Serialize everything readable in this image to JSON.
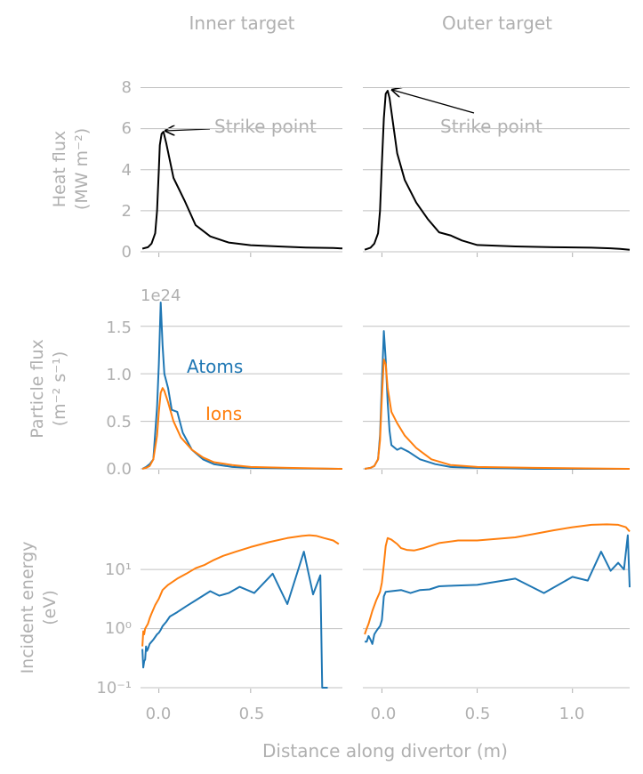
{
  "colors": {
    "atoms": "#1f77b4",
    "ions": "#ff7f0e",
    "heat": "#000000",
    "text": "#b0b0b0",
    "grid": "#c0c0c0"
  },
  "figure": {
    "col_titles": [
      "Inner target",
      "Outer target"
    ],
    "xlabel": "Distance along divertor (m)",
    "xticks_inner": [
      "0.0",
      "0.5"
    ],
    "xticks_outer": [
      "0.0",
      "0.5",
      "1.0"
    ],
    "ylabel_heat": [
      "Heat flux",
      "(MW m⁻²)"
    ],
    "ylabel_particle": [
      "Particle flux",
      "(m⁻² s⁻¹)"
    ],
    "ylabel_energy": [
      "Incident energy",
      "(eV)"
    ],
    "yticks_heat": [
      "0",
      "2",
      "4",
      "6",
      "8"
    ],
    "yticks_particle": [
      "0.0",
      "0.5",
      "1.0",
      "1.5"
    ],
    "yticks_energy": [
      "10⁻¹",
      "10⁰",
      "10¹"
    ],
    "offset_label": "1e24",
    "annotation_strike_inner": "Strike point",
    "annotation_strike_outer": "Strike point",
    "legend_atoms": "Atoms",
    "legend_ions": "Ions"
  },
  "chart_data": [
    {
      "type": "line",
      "panel": "heat-inner",
      "title": "Inner target",
      "ylabel": "Heat flux (MW m-2)",
      "xlim": [
        -0.1,
        1.0
      ],
      "ylim": [
        0,
        8.5
      ],
      "series": [
        {
          "name": "Heat flux",
          "color": "#000000",
          "x": [
            -0.09,
            -0.06,
            -0.04,
            -0.02,
            -0.01,
            0.0,
            0.005,
            0.015,
            0.025,
            0.04,
            0.08,
            0.14,
            0.2,
            0.28,
            0.38,
            0.5,
            0.65,
            0.8,
            0.95,
            1.0
          ],
          "y": [
            0.15,
            0.22,
            0.4,
            0.9,
            2.0,
            4.0,
            5.2,
            5.75,
            5.85,
            5.3,
            3.6,
            2.5,
            1.3,
            0.75,
            0.45,
            0.32,
            0.26,
            0.21,
            0.18,
            0.16
          ]
        }
      ],
      "annotation": {
        "text": "Strike point",
        "xy": [
          0.02,
          5.85
        ]
      }
    },
    {
      "type": "line",
      "panel": "heat-outer",
      "title": "Outer target",
      "xlim": [
        -0.1,
        1.3
      ],
      "ylim": [
        0,
        8.5
      ],
      "series": [
        {
          "name": "Heat flux",
          "color": "#000000",
          "x": [
            -0.09,
            -0.06,
            -0.04,
            -0.02,
            -0.01,
            0.0,
            0.01,
            0.02,
            0.03,
            0.04,
            0.08,
            0.12,
            0.18,
            0.24,
            0.3,
            0.36,
            0.42,
            0.5,
            0.7,
            0.9,
            1.1,
            1.2,
            1.25,
            1.3
          ],
          "y": [
            0.1,
            0.2,
            0.4,
            0.9,
            2.0,
            4.3,
            6.5,
            7.7,
            7.85,
            7.5,
            4.8,
            3.5,
            2.4,
            1.6,
            0.95,
            0.8,
            0.55,
            0.33,
            0.26,
            0.22,
            0.2,
            0.17,
            0.14,
            0.1
          ]
        }
      ],
      "annotation": {
        "text": "Strike point",
        "xy": [
          0.03,
          7.85
        ]
      }
    },
    {
      "type": "line",
      "panel": "particle-inner",
      "ylabel": "Particle flux (m-2 s-1)",
      "scale": "1e24",
      "xlim": [
        -0.1,
        1.0
      ],
      "ylim": [
        0,
        1.75
      ],
      "series": [
        {
          "name": "Atoms",
          "color": "#1f77b4",
          "x": [
            -0.09,
            -0.07,
            -0.05,
            -0.03,
            -0.01,
            0.0,
            0.01,
            0.02,
            0.03,
            0.05,
            0.07,
            0.1,
            0.13,
            0.18,
            0.24,
            0.3,
            0.4,
            0.5,
            0.7,
            1.0
          ],
          "y": [
            0.0,
            0.02,
            0.05,
            0.1,
            0.65,
            1.1,
            1.75,
            1.3,
            1.0,
            0.85,
            0.62,
            0.6,
            0.38,
            0.2,
            0.1,
            0.05,
            0.02,
            0.01,
            0.005,
            0.0
          ]
        },
        {
          "name": "Ions",
          "color": "#ff7f0e",
          "x": [
            -0.09,
            -0.07,
            -0.05,
            -0.03,
            -0.01,
            0.0,
            0.01,
            0.02,
            0.03,
            0.05,
            0.08,
            0.12,
            0.18,
            0.24,
            0.3,
            0.4,
            0.5,
            0.7,
            1.0
          ],
          "y": [
            0.0,
            0.01,
            0.03,
            0.1,
            0.35,
            0.6,
            0.8,
            0.85,
            0.82,
            0.7,
            0.5,
            0.33,
            0.2,
            0.12,
            0.07,
            0.04,
            0.02,
            0.01,
            0.0
          ]
        }
      ]
    },
    {
      "type": "line",
      "panel": "particle-outer",
      "scale": "1e24",
      "xlim": [
        -0.1,
        1.3
      ],
      "ylim": [
        0,
        1.75
      ],
      "series": [
        {
          "name": "Atoms",
          "color": "#1f77b4",
          "x": [
            -0.09,
            -0.06,
            -0.04,
            -0.02,
            -0.01,
            0.0,
            0.01,
            0.02,
            0.03,
            0.04,
            0.05,
            0.08,
            0.1,
            0.14,
            0.2,
            0.28,
            0.36,
            0.5,
            0.8,
            1.3
          ],
          "y": [
            0.0,
            0.01,
            0.03,
            0.1,
            0.35,
            0.9,
            1.45,
            1.15,
            0.7,
            0.4,
            0.25,
            0.2,
            0.22,
            0.18,
            0.1,
            0.05,
            0.02,
            0.01,
            0.0,
            0.0
          ]
        },
        {
          "name": "Ions",
          "color": "#ff7f0e",
          "x": [
            -0.09,
            -0.06,
            -0.04,
            -0.02,
            -0.01,
            0.0,
            0.01,
            0.02,
            0.03,
            0.05,
            0.08,
            0.12,
            0.18,
            0.26,
            0.36,
            0.5,
            0.8,
            1.3
          ],
          "y": [
            0.0,
            0.01,
            0.03,
            0.1,
            0.3,
            0.75,
            1.15,
            1.1,
            0.85,
            0.6,
            0.48,
            0.35,
            0.22,
            0.1,
            0.04,
            0.02,
            0.01,
            0.0
          ]
        }
      ]
    },
    {
      "type": "line",
      "panel": "energy-inner",
      "ylabel": "Incident energy (eV)",
      "yscale": "log",
      "xlim": [
        -0.1,
        1.0
      ],
      "ylim": [
        0.1,
        70
      ],
      "series": [
        {
          "name": "Atoms",
          "color": "#1f77b4",
          "x": [
            -0.09,
            -0.085,
            -0.08,
            -0.075,
            -0.07,
            -0.065,
            -0.06,
            -0.05,
            -0.04,
            -0.03,
            -0.02,
            -0.01,
            0.0,
            0.01,
            0.02,
            0.04,
            0.06,
            0.1,
            0.15,
            0.2,
            0.28,
            0.33,
            0.38,
            0.44,
            0.52,
            0.62,
            0.7,
            0.79,
            0.84,
            0.88,
            0.89,
            0.92
          ],
          "y": [
            0.45,
            0.22,
            0.28,
            0.3,
            0.5,
            0.42,
            0.45,
            0.55,
            0.6,
            0.65,
            0.72,
            0.8,
            0.85,
            0.95,
            1.1,
            1.3,
            1.6,
            1.9,
            2.4,
            3.0,
            4.3,
            3.6,
            4.0,
            5.1,
            4.0,
            8.5,
            2.6,
            20.0,
            3.8,
            8.0,
            0.1,
            0.1
          ]
        },
        {
          "name": "Ions",
          "color": "#ff7f0e",
          "x": [
            -0.09,
            -0.085,
            -0.08,
            -0.075,
            -0.06,
            -0.05,
            -0.04,
            -0.02,
            0.0,
            0.02,
            0.05,
            0.1,
            0.15,
            0.2,
            0.25,
            0.3,
            0.35,
            0.42,
            0.5,
            0.6,
            0.7,
            0.78,
            0.82,
            0.86,
            0.9,
            0.95,
            0.98
          ],
          "y": [
            0.5,
            0.9,
            0.8,
            1.0,
            1.2,
            1.5,
            1.8,
            2.5,
            3.2,
            4.5,
            5.5,
            7.0,
            8.5,
            10.5,
            12.0,
            14.5,
            17.0,
            20.0,
            24.0,
            29.0,
            34.0,
            37.0,
            38.0,
            37.0,
            34.0,
            31.0,
            27.0
          ]
        }
      ]
    },
    {
      "type": "line",
      "panel": "energy-outer",
      "yscale": "log",
      "xlim": [
        -0.1,
        1.3
      ],
      "ylim": [
        0.1,
        70
      ],
      "series": [
        {
          "name": "Atoms",
          "color": "#1f77b4",
          "x": [
            -0.09,
            -0.08,
            -0.07,
            -0.06,
            -0.05,
            -0.04,
            -0.03,
            -0.02,
            -0.01,
            0.0,
            0.01,
            0.02,
            0.05,
            0.1,
            0.15,
            0.2,
            0.25,
            0.3,
            0.35,
            0.5,
            0.7,
            0.85,
            1.0,
            1.08,
            1.15,
            1.2,
            1.24,
            1.27,
            1.29,
            1.3
          ],
          "y": [
            0.6,
            0.6,
            0.75,
            0.65,
            0.55,
            0.8,
            0.9,
            1.0,
            1.1,
            1.4,
            3.5,
            4.2,
            4.3,
            4.5,
            4.0,
            4.5,
            4.6,
            5.2,
            5.3,
            5.5,
            7.0,
            4.0,
            7.5,
            6.5,
            20.0,
            9.5,
            13.0,
            10.0,
            38.0,
            5.0
          ]
        },
        {
          "name": "Ions",
          "color": "#ff7f0e",
          "x": [
            -0.09,
            -0.08,
            -0.07,
            -0.05,
            -0.03,
            -0.01,
            0.0,
            0.01,
            0.02,
            0.03,
            0.05,
            0.08,
            0.1,
            0.13,
            0.17,
            0.22,
            0.3,
            0.4,
            0.5,
            0.6,
            0.7,
            0.8,
            0.9,
            1.0,
            1.1,
            1.18,
            1.24,
            1.28,
            1.3
          ],
          "y": [
            0.8,
            1.0,
            1.2,
            2.0,
            3.0,
            4.2,
            6.0,
            12.0,
            25.0,
            34.0,
            32.0,
            27.0,
            23.0,
            21.5,
            21.0,
            23.0,
            28.0,
            31.0,
            31.0,
            33.0,
            35.0,
            40.0,
            46.0,
            52.0,
            57.0,
            58.0,
            57.0,
            52.0,
            44.0
          ]
        }
      ]
    }
  ]
}
